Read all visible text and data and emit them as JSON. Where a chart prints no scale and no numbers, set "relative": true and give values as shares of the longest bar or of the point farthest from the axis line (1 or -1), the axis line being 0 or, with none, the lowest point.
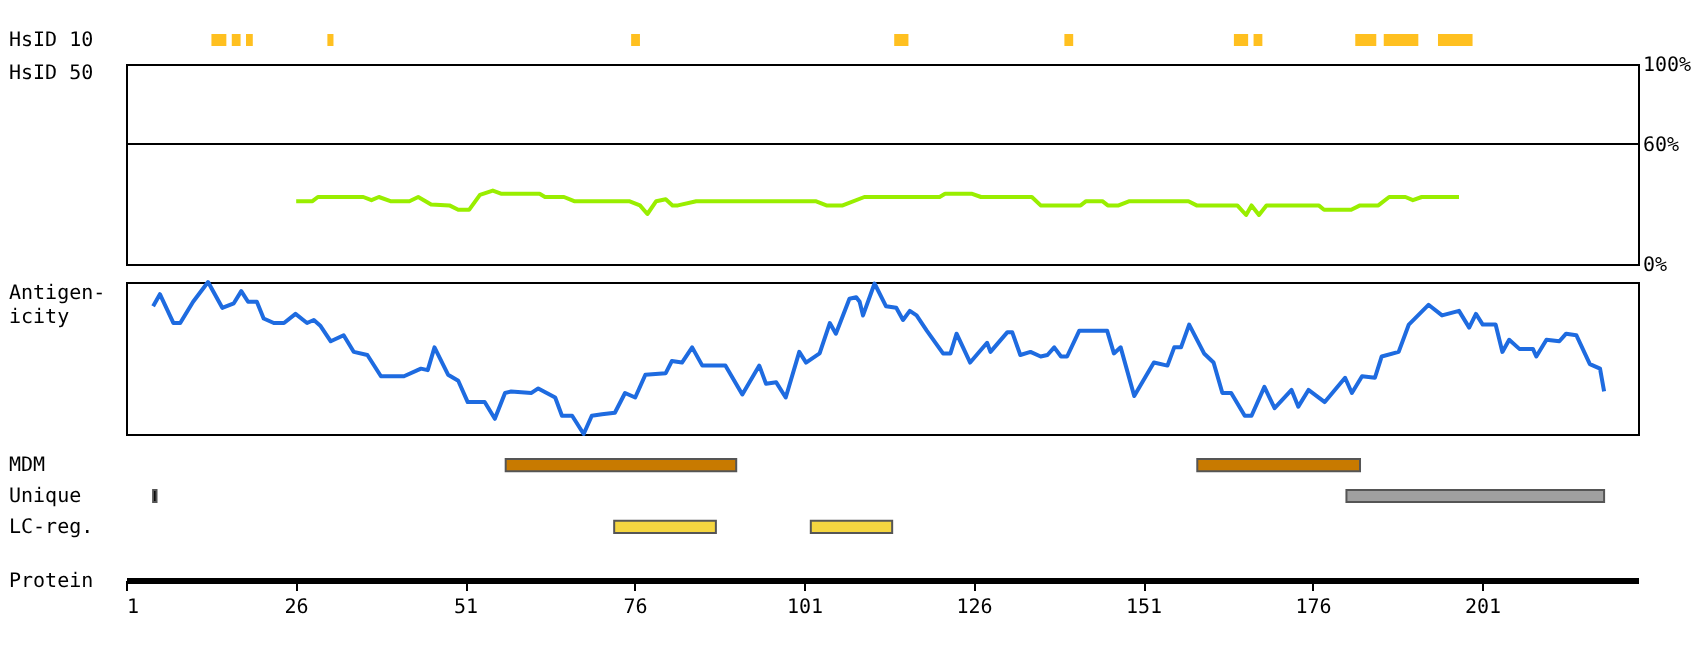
{
  "chart_data": [
    {
      "type": "bar",
      "orientation": "horizontal",
      "categories": [
        "HsID 10"
      ],
      "xlim": [
        1,
        224
      ],
      "tick_labels": "y",
      "series": [
        {
          "color": "#ffc020",
          "base": [
            13.6
          ],
          "values": [
            2.2
          ]
        },
        {
          "color": "#ffc020",
          "base": [
            16.6
          ],
          "values": [
            1.3
          ]
        },
        {
          "color": "#ffc020",
          "base": [
            18.7
          ],
          "values": [
            1.0
          ]
        },
        {
          "color": "#ffc020",
          "base": [
            30.7
          ],
          "values": [
            0.9
          ]
        },
        {
          "color": "#ffc020",
          "base": [
            75.5
          ],
          "values": [
            1.3
          ]
        },
        {
          "color": "#ffc020",
          "base": [
            114.3
          ],
          "values": [
            2.1
          ]
        },
        {
          "color": "#ffc020",
          "base": [
            139.4
          ],
          "values": [
            1.3
          ]
        },
        {
          "color": "#ffc020",
          "base": [
            164.4
          ],
          "values": [
            2.1
          ]
        },
        {
          "color": "#ffc020",
          "base": [
            167.3
          ],
          "values": [
            1.3
          ]
        },
        {
          "color": "#ffc020",
          "base": [
            182.3
          ],
          "values": [
            3.1
          ]
        },
        {
          "color": "#ffc020",
          "base": [
            186.5
          ],
          "values": [
            5.1
          ]
        },
        {
          "color": "#ffc020",
          "base": [
            194.5
          ],
          "values": [
            5.1
          ]
        }
      ]
    },
    {
      "type": "line",
      "ylabel": "HsID 50",
      "xlim": [
        1,
        224
      ],
      "ylim": [
        0,
        100
      ],
      "yticks": [
        {
          "value": 0,
          "label": "0%"
        },
        {
          "value": 60,
          "label": "60%"
        },
        {
          "value": 100,
          "label": "100%"
        }
      ],
      "tick_labels": "y",
      "ref_lines": [
        {
          "axis": "y",
          "value": 60,
          "color": "#000000"
        }
      ],
      "x": [
        26.1,
        28.5,
        29.3,
        36,
        37.2,
        38.3,
        40,
        42.8,
        44.1,
        46,
        48.7,
        50,
        51.6,
        53.2,
        55.1,
        56.4,
        62,
        62.8,
        65.6,
        67.1,
        75.2,
        76.8,
        77.9,
        79.2,
        80.6,
        81.6,
        82.4,
        85.1,
        102.7,
        104.3,
        106.7,
        109.9,
        121,
        121.8,
        125.8,
        127.1,
        134.6,
        135.9,
        141.8,
        142.6,
        145,
        145.8,
        147.4,
        149,
        157.7,
        158.9,
        164.9,
        166.2,
        167,
        168.1,
        169.2,
        176.9,
        177.7,
        181.7,
        183,
        185.7,
        187.3,
        189.7,
        190.8,
        192.1,
        197.6
      ],
      "series": [
        {
          "color": "#99ee00",
          "values": [
            31.4,
            31.4,
            33.5,
            33.5,
            31.9,
            33.5,
            31.4,
            31.4,
            33.5,
            29.8,
            29.3,
            27.1,
            27.1,
            34.6,
            36.7,
            35.1,
            35.1,
            33.5,
            33.5,
            31.4,
            31.4,
            29.3,
            25,
            31.4,
            32.4,
            29.3,
            29.3,
            31.4,
            31.4,
            29.3,
            29.3,
            33.5,
            33.5,
            35.1,
            35.1,
            33.5,
            33.5,
            29.3,
            29.3,
            31.4,
            31.4,
            29.3,
            29.3,
            31.4,
            31.4,
            29.3,
            29.3,
            24.5,
            29.3,
            24.5,
            29.3,
            29.3,
            27.1,
            27.1,
            29.3,
            29.3,
            33.5,
            33.5,
            31.9,
            33.5,
            33.5
          ]
        }
      ]
    },
    {
      "type": "line",
      "relative": true,
      "ylabel": "Antigen-\nicity",
      "xlim": [
        1,
        224
      ],
      "tick_labels": false,
      "x": [
        5.0,
        6.0,
        8.0,
        9.0,
        10.9,
        13.1,
        15.2,
        16.9,
        18.0,
        19.0,
        20.3,
        21.3,
        22.8,
        24.3,
        26.0,
        27.7,
        28.7,
        29.7,
        31.2,
        33.1,
        34.6,
        36.6,
        38.6,
        42.0,
        44.5,
        45.5,
        46.5,
        48.5,
        50.0,
        51.4,
        53.9,
        55.4,
        56.9,
        57.8,
        60.8,
        61.8,
        64.3,
        65.3,
        66.8,
        68.5,
        69.7,
        71.2,
        73.1,
        74.6,
        76.1,
        77.6,
        80.6,
        81.5,
        83.0,
        84.5,
        86.0,
        89.4,
        91.9,
        94.4,
        95.4,
        96.9,
        98.3,
        100.3,
        101.3,
        103.3,
        104.8,
        105.7,
        107.7,
        108.7,
        109.2,
        109.7,
        111.4,
        113.1,
        114.6,
        115.6,
        116.6,
        117.6,
        119.1,
        121.5,
        122.6,
        123.5,
        125.5,
        128.0,
        128.5,
        131.0,
        131.7,
        132.9,
        134.4,
        135.9,
        136.9,
        137.9,
        138.9,
        139.8,
        141.6,
        145.7,
        146.7,
        147.7,
        149.7,
        152.6,
        154.6,
        155.6,
        156.6,
        157.8,
        160.0,
        161.4,
        162.7,
        164.0,
        166.0,
        167.0,
        168.9,
        170.4,
        172.9,
        173.9,
        175.4,
        177.8,
        180.8,
        181.8,
        183.3,
        185.2,
        186.2,
        188.7,
        190.2,
        193.1,
        195.1,
        197.6,
        199.1,
        200.1,
        201.1,
        203.0,
        204.0,
        205.0,
        206.5,
        208.5,
        209.0,
        210.5,
        212.4,
        213.4,
        214.9,
        216.9,
        218.4,
        219.0
      ],
      "series": [
        {
          "color": "#1e6be0",
          "values": [
            0.84,
            0.92,
            0.73,
            0.73,
            0.87,
            1.0,
            0.83,
            0.86,
            0.94,
            0.87,
            0.87,
            0.76,
            0.73,
            0.73,
            0.79,
            0.73,
            0.75,
            0.71,
            0.61,
            0.65,
            0.54,
            0.52,
            0.38,
            0.38,
            0.43,
            0.42,
            0.57,
            0.39,
            0.35,
            0.21,
            0.21,
            0.1,
            0.27,
            0.28,
            0.27,
            0.3,
            0.24,
            0.12,
            0.12,
            0,
            0.12,
            0.13,
            0.14,
            0.27,
            0.24,
            0.39,
            0.4,
            0.48,
            0.47,
            0.57,
            0.45,
            0.45,
            0.26,
            0.45,
            0.33,
            0.34,
            0.24,
            0.54,
            0.47,
            0.53,
            0.73,
            0.66,
            0.89,
            0.9,
            0.87,
            0.78,
            0.99,
            0.84,
            0.83,
            0.75,
            0.81,
            0.78,
            0.68,
            0.53,
            0.53,
            0.66,
            0.47,
            0.6,
            0.54,
            0.67,
            0.67,
            0.52,
            0.54,
            0.51,
            0.52,
            0.57,
            0.51,
            0.51,
            0.68,
            0.68,
            0.53,
            0.57,
            0.25,
            0.47,
            0.45,
            0.57,
            0.57,
            0.72,
            0.53,
            0.47,
            0.27,
            0.27,
            0.12,
            0.12,
            0.31,
            0.17,
            0.29,
            0.18,
            0.29,
            0.21,
            0.37,
            0.27,
            0.38,
            0.37,
            0.51,
            0.54,
            0.72,
            0.85,
            0.78,
            0.81,
            0.7,
            0.79,
            0.72,
            0.72,
            0.54,
            0.62,
            0.56,
            0.56,
            0.51,
            0.62,
            0.61,
            0.66,
            0.65,
            0.46,
            0.43,
            0.28
          ]
        }
      ]
    },
    {
      "type": "bar",
      "orientation": "horizontal",
      "categories": [
        "MDM",
        "Unique",
        "LC-reg."
      ],
      "xlim": [
        1,
        224
      ],
      "xticks": [
        1,
        26,
        51,
        76,
        101,
        126,
        151,
        176,
        201
      ],
      "xlabel": "Protein",
      "series": [
        {
          "colors": [
            "#c87a00",
            "#000000",
            "#f5d640"
          ],
          "base": [
            57,
            5,
            73
          ],
          "values": [
            34,
            0.5,
            15
          ]
        },
        {
          "colors": [
            "#c87a00",
            "#a0a0a0",
            "#f5d640"
          ],
          "base": [
            159,
            181,
            102
          ],
          "values": [
            24,
            38,
            12
          ]
        }
      ]
    }
  ]
}
